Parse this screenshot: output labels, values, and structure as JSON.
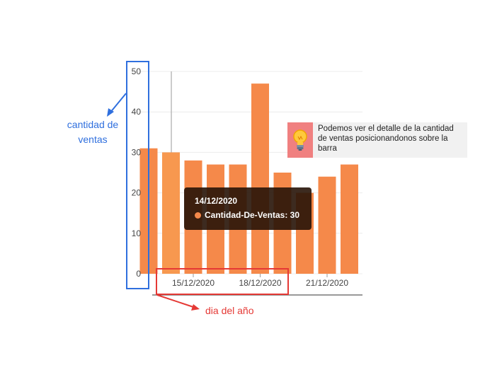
{
  "chart_data": {
    "type": "bar",
    "y_ticks": [
      "0",
      "10",
      "20",
      "30",
      "40",
      "50"
    ],
    "ylim": [
      0,
      50
    ],
    "values": [
      31,
      30,
      28,
      27,
      27,
      47,
      25,
      20,
      24,
      27
    ],
    "highlighted_index": 1,
    "x_tick_labels": [
      "15/12/2020",
      "18/12/2020",
      "21/12/2020"
    ],
    "x_tick_bar_index": [
      2,
      5,
      8
    ],
    "bar_color": "#f5894a",
    "highlight_color": "#f7984f",
    "grid": true
  },
  "tooltip": {
    "date": "14/12/2020",
    "series_label": "Cantidad-De-Ventas: 30",
    "dot_color": "#f5894a"
  },
  "annotations": {
    "y_axis_label": "cantidad de ventas",
    "x_axis_label": "dia del año",
    "y_color": "#2f6fde",
    "x_color": "#e53935"
  },
  "note": {
    "icon": "lightbulb-icon",
    "text": "Podemos ver el detalle de la cantidad de ventas posicionandonos sobre la barra"
  }
}
